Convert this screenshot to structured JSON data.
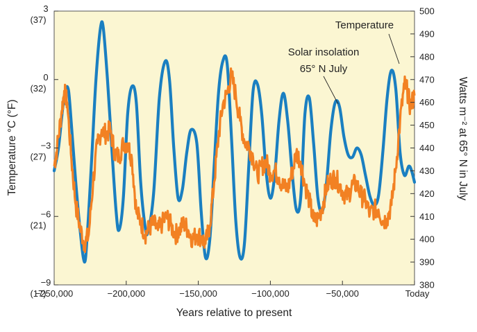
{
  "chart_data": {
    "type": "line",
    "title": "",
    "xlabel": "Years relative to present",
    "ylabel_left": "Temperature °C (°F)",
    "ylabel_right": "Watts m⁻² at 65° N in July",
    "xlim": [
      -250000,
      0
    ],
    "ylim_left": [
      -9,
      3
    ],
    "ylim_right": [
      380,
      500
    ],
    "x_ticks": [
      {
        "value": -250000,
        "label": "−250,000"
      },
      {
        "value": -200000,
        "label": "−200,000"
      },
      {
        "value": -150000,
        "label": "−150,000"
      },
      {
        "value": -100000,
        "label": "−100,000"
      },
      {
        "value": -50000,
        "label": "−50,000"
      },
      {
        "value": 0,
        "label": "Today"
      }
    ],
    "y_ticks_left": [
      {
        "value": 3,
        "label": "3",
        "sublabel": "(37)"
      },
      {
        "value": 0,
        "label": "0",
        "sublabel": "(32)"
      },
      {
        "value": -3,
        "label": "−3",
        "sublabel": "(27)"
      },
      {
        "value": -6,
        "label": "−6",
        "sublabel": "(21)"
      },
      {
        "value": -9,
        "label": "−9",
        "sublabel": "(17)"
      }
    ],
    "y_ticks_right": [
      {
        "value": 500,
        "label": "500"
      },
      {
        "value": 490,
        "label": "490"
      },
      {
        "value": 480,
        "label": "480"
      },
      {
        "value": 470,
        "label": "470"
      },
      {
        "value": 460,
        "label": "460"
      },
      {
        "value": 450,
        "label": "450"
      },
      {
        "value": 440,
        "label": "440"
      },
      {
        "value": 430,
        "label": "430"
      },
      {
        "value": 420,
        "label": "420"
      },
      {
        "value": 410,
        "label": "410"
      },
      {
        "value": 400,
        "label": "400"
      },
      {
        "value": 390,
        "label": "390"
      },
      {
        "value": 380,
        "label": "380"
      }
    ],
    "series": [
      {
        "name": "Solar insolation 65° N July",
        "axis": "right",
        "color": "#1a7fc1",
        "x": [
          -250000,
          -247000,
          -244000,
          -242000,
          -240000,
          -238000,
          -235000,
          -232000,
          -229000,
          -227000,
          -224000,
          -221000,
          -218000,
          -216000,
          -213000,
          -210000,
          -207000,
          -205000,
          -202000,
          -199000,
          -196000,
          -193000,
          -190000,
          -187000,
          -185000,
          -181000,
          -177000,
          -173000,
          -170000,
          -167000,
          -164000,
          -161000,
          -158000,
          -155000,
          -151000,
          -148000,
          -145000,
          -142000,
          -139000,
          -136000,
          -133000,
          -130000,
          -127000,
          -124000,
          -121000,
          -118000,
          -115000,
          -112000,
          -109000,
          -106000,
          -103000,
          -100000,
          -97000,
          -94000,
          -91000,
          -88000,
          -85000,
          -82000,
          -79000,
          -76000,
          -73000,
          -70000,
          -67000,
          -64000,
          -61000,
          -58000,
          -55000,
          -52000,
          -49000,
          -46000,
          -43000,
          -40000,
          -37000,
          -34000,
          -31000,
          -28000,
          -25000,
          -22000,
          -19000,
          -16000,
          -13000,
          -10000,
          -7000,
          -4000,
          -2000,
          0
        ],
        "values": [
          430,
          440,
          458,
          466,
          465,
          450,
          425,
          404,
          390,
          402,
          435,
          470,
          492,
          493,
          470,
          440,
          412,
          404,
          418,
          455,
          467,
          460,
          425,
          406,
          403,
          420,
          462,
          478,
          470,
          440,
          418,
          422,
          438,
          448,
          442,
          412,
          392,
          400,
          432,
          464,
          478,
          477,
          445,
          408,
          392,
          398,
          432,
          465,
          468,
          455,
          430,
          418,
          428,
          452,
          464,
          452,
          430,
          413,
          418,
          455,
          462,
          442,
          418,
          412,
          425,
          448,
          460,
          458,
          445,
          437,
          436,
          440,
          437,
          428,
          419,
          415,
          419,
          438,
          462,
          474,
          466,
          438,
          428,
          432,
          430,
          425
        ]
      },
      {
        "name": "Temperature",
        "axis": "left",
        "color": "#f28123",
        "x": [
          -250000,
          -248000,
          -245000,
          -243000,
          -241000,
          -238000,
          -235000,
          -232000,
          -229000,
          -226000,
          -223000,
          -220000,
          -217000,
          -214000,
          -211000,
          -208000,
          -205000,
          -202000,
          -199000,
          -196000,
          -193000,
          -190000,
          -187000,
          -184000,
          -181000,
          -178000,
          -175000,
          -172000,
          -169000,
          -166000,
          -163000,
          -160000,
          -157000,
          -154000,
          -151000,
          -148000,
          -145000,
          -142000,
          -139000,
          -136000,
          -133000,
          -130000,
          -127000,
          -124000,
          -121000,
          -118000,
          -115000,
          -112000,
          -109000,
          -106000,
          -103000,
          -100000,
          -97000,
          -94000,
          -91000,
          -88000,
          -85000,
          -82000,
          -79000,
          -76000,
          -73000,
          -70000,
          -67000,
          -64000,
          -61000,
          -58000,
          -55000,
          -52000,
          -49000,
          -46000,
          -43000,
          -40000,
          -37000,
          -34000,
          -31000,
          -28000,
          -25000,
          -22000,
          -19000,
          -16000,
          -13000,
          -10000,
          -7000,
          -5000,
          -3000,
          0
        ],
        "values": [
          -3.8,
          -3,
          -1.5,
          -0.5,
          -1,
          -3.5,
          -5.5,
          -6.5,
          -7.2,
          -6.8,
          -4.5,
          -2.8,
          -2.2,
          -2.4,
          -2.2,
          -3.2,
          -3.4,
          -2.8,
          -2.8,
          -3.5,
          -5.8,
          -6.2,
          -6.8,
          -6.5,
          -6.3,
          -6.6,
          -6.3,
          -6.0,
          -6.4,
          -6.8,
          -6.6,
          -6.3,
          -6.6,
          -7,
          -6.8,
          -6.9,
          -7.2,
          -6.4,
          -4.5,
          -2.5,
          -1.1,
          -0.6,
          0.2,
          -0.7,
          -1.8,
          -2.7,
          -2.9,
          -3.4,
          -4.2,
          -3.8,
          -3.6,
          -4.1,
          -4.0,
          -4.3,
          -4.7,
          -4.8,
          -4.1,
          -3.2,
          -3.6,
          -4.6,
          -5.3,
          -6.2,
          -6.1,
          -5.6,
          -4.7,
          -4.4,
          -4.3,
          -4.6,
          -5.0,
          -5.1,
          -4.6,
          -4.6,
          -5.1,
          -5.3,
          -5.9,
          -5.7,
          -5.7,
          -6.2,
          -6.1,
          -5.5,
          -3.9,
          -1.8,
          -0.2,
          -0.5,
          -1.2,
          -0.7
        ]
      }
    ],
    "annotations": [
      {
        "text": "Temperature",
        "points_to": "Temperature"
      },
      {
        "text_lines": [
          "Solar insolation",
          "65° N July"
        ],
        "points_to": "Solar insolation 65° N July"
      }
    ],
    "grid": false,
    "legend": "none",
    "colors": {
      "plot_background": "#fbf6d2",
      "frame": "#555555",
      "insolation": "#1a7fc1",
      "temperature": "#f28123"
    }
  }
}
